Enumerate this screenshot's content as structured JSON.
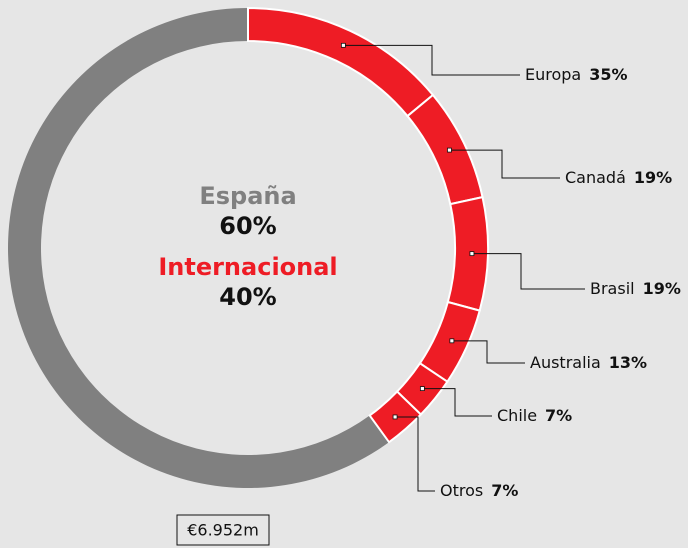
{
  "chart_data": {
    "type": "donut",
    "center_labels": [
      {
        "name": "España",
        "value": 60,
        "value_label": "60%",
        "color": "#808080"
      },
      {
        "name": "Internacional",
        "value": 40,
        "value_label": "40%",
        "color": "#ee1c25"
      }
    ],
    "breakdown": {
      "categories": [
        "Europa",
        "Canadá",
        "Brasil",
        "Australia",
        "Chile",
        "Otros"
      ],
      "values": [
        35,
        19,
        19,
        13,
        7,
        7
      ],
      "value_labels": [
        "35%",
        "19%",
        "19%",
        "13%",
        "7%",
        "7%"
      ]
    },
    "total_label": "€6.952m"
  }
}
